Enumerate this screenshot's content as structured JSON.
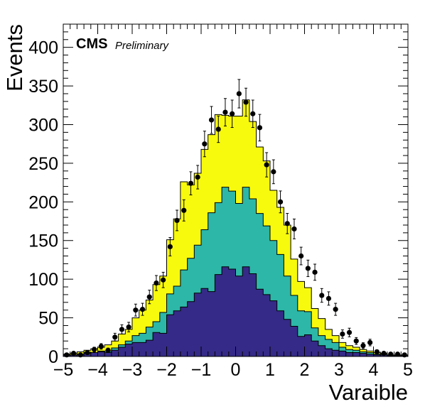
{
  "chart_data": {
    "type": "area",
    "style": "stacked step histogram with data points and error bars",
    "title": "",
    "xlabel": "Varaible",
    "ylabel": "Events",
    "xlim": [
      -5,
      5
    ],
    "ylim": [
      0,
      430
    ],
    "xticks": [
      "−5",
      "−4",
      "−3",
      "−2",
      "−1",
      "0",
      "1",
      "2",
      "3",
      "4",
      "5"
    ],
    "xtick_values": [
      -5,
      -4,
      -3,
      -2,
      -1,
      0,
      1,
      2,
      3,
      4,
      5
    ],
    "yticks": [
      "0",
      "50",
      "100",
      "150",
      "200",
      "250",
      "300",
      "350",
      "400"
    ],
    "ytick_values": [
      0,
      50,
      100,
      150,
      200,
      250,
      300,
      350,
      400
    ],
    "grid": false,
    "legend": "none",
    "annotation": {
      "experiment": "CMS",
      "status": "Preliminary"
    },
    "bin_edges_start": -5.0,
    "bin_width": 0.2,
    "series": [
      {
        "color": "#352a87",
        "values": [
          2,
          2,
          3,
          4,
          5,
          6,
          5,
          8,
          12,
          16,
          18,
          18,
          21,
          31,
          30,
          54,
          59,
          64,
          71,
          82,
          88,
          84,
          106,
          116,
          113,
          104,
          116,
          107,
          87,
          80,
          72,
          59,
          48,
          39,
          26,
          28,
          20,
          14,
          10,
          8,
          7,
          5,
          5,
          4,
          3,
          2,
          2,
          1,
          1,
          1
        ]
      },
      {
        "color": "#2db7a8",
        "values": [
          0,
          0,
          0,
          1,
          0,
          1,
          2,
          3,
          3,
          4,
          9,
          12,
          17,
          14,
          27,
          27,
          32,
          48,
          56,
          62,
          76,
          102,
          93,
          103,
          101,
          94,
          103,
          97,
          98,
          89,
          78,
          73,
          56,
          40,
          33,
          30,
          17,
          13,
          12,
          10,
          5,
          4,
          3,
          2,
          2,
          1,
          1,
          0,
          0,
          0
        ]
      },
      {
        "color": "#f8fa0d",
        "values": [
          1,
          2,
          3,
          3,
          5,
          5,
          8,
          9,
          14,
          15,
          23,
          30,
          35,
          48,
          47,
          70,
          87,
          114,
          95,
          93,
          104,
          101,
          114,
          93,
          97,
          113,
          113,
          100,
          86,
          84,
          65,
          61,
          66,
          47,
          38,
          31,
          25,
          22,
          13,
          9,
          6,
          5,
          4,
          3,
          2,
          2,
          1,
          1,
          1,
          1
        ]
      }
    ],
    "data_points": {
      "x": [
        -4.9,
        -4.7,
        -4.5,
        -4.3,
        -4.1,
        -3.9,
        -3.7,
        -3.5,
        -3.3,
        -3.1,
        -2.9,
        -2.7,
        -2.5,
        -2.3,
        -2.1,
        -1.9,
        -1.7,
        -1.5,
        -1.3,
        -1.1,
        -0.9,
        -0.7,
        -0.5,
        -0.3,
        -0.1,
        0.1,
        0.3,
        0.5,
        0.7,
        0.9,
        1.1,
        1.3,
        1.5,
        1.7,
        1.9,
        2.1,
        2.3,
        2.5,
        2.7,
        2.9,
        3.1,
        3.3,
        3.5,
        3.7,
        3.9,
        4.1,
        4.3,
        4.5,
        4.7,
        4.9
      ],
      "y": [
        2,
        4,
        2,
        5,
        9,
        13,
        8,
        25,
        35,
        38,
        60,
        61,
        77,
        95,
        99,
        142,
        176,
        189,
        224,
        232,
        275,
        306,
        294,
        316,
        314,
        340,
        329,
        314,
        296,
        248,
        239,
        200,
        172,
        165,
        130,
        114,
        109,
        79,
        75,
        61,
        29,
        31,
        20,
        14,
        18,
        6,
        4,
        3,
        3,
        2
      ]
    }
  }
}
